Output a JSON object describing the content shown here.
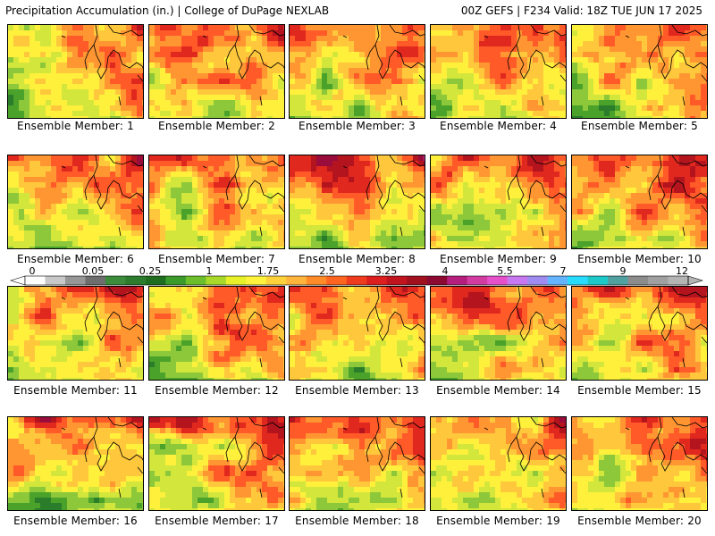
{
  "header": {
    "left_title": "Precipitation Accumulation (in.) | College of DuPage NEXLAB",
    "right_title": "00Z GEFS | F234 Valid: 18Z TUE JUN 17 2025"
  },
  "panels": [
    {
      "label": "Ensemble Member: 1"
    },
    {
      "label": "Ensemble Member: 2"
    },
    {
      "label": "Ensemble Member: 3"
    },
    {
      "label": "Ensemble Member: 4"
    },
    {
      "label": "Ensemble Member: 5"
    },
    {
      "label": "Ensemble Member: 6"
    },
    {
      "label": "Ensemble Member: 7"
    },
    {
      "label": "Ensemble Member: 8"
    },
    {
      "label": "Ensemble Member: 9"
    },
    {
      "label": "Ensemble Member: 10"
    },
    {
      "label": "Ensemble Member: 11"
    },
    {
      "label": "Ensemble Member: 12"
    },
    {
      "label": "Ensemble Member: 13"
    },
    {
      "label": "Ensemble Member: 14"
    },
    {
      "label": "Ensemble Member: 15"
    },
    {
      "label": "Ensemble Member: 16"
    },
    {
      "label": "Ensemble Member: 17"
    },
    {
      "label": "Ensemble Member: 18"
    },
    {
      "label": "Ensemble Member: 19"
    },
    {
      "label": "Ensemble Member: 20"
    }
  ],
  "scale": {
    "labels": [
      "0",
      "0.05",
      "0.25",
      "1",
      "1.75",
      "2.5",
      "3.25",
      "4",
      "5.5",
      "7",
      "9",
      "12"
    ],
    "colors": [
      "#ffffff",
      "#c8c8c8",
      "#969696",
      "#6e6e6e",
      "#3c8c3c",
      "#2e7d2e",
      "#1f6e1f",
      "#3a9b2a",
      "#6cbf2a",
      "#a8d82a",
      "#e8f02a",
      "#fff23c",
      "#ffd23c",
      "#ffb43c",
      "#ff8c28",
      "#ff6420",
      "#f03c1e",
      "#dc1e1e",
      "#c0141e",
      "#a0101e",
      "#8c0a32",
      "#b41e7c",
      "#d23ca0",
      "#e650c8",
      "#c878f0",
      "#a08cf0",
      "#64b4ff",
      "#28dcff",
      "#1ec8c8",
      "#50a0a0",
      "#8c8c8c",
      "#a0a0a0",
      "#b4b4b4"
    ],
    "palette_map": [
      "#2a7d2a",
      "#4aa22a",
      "#8cc83a",
      "#d2e63c",
      "#fff03c",
      "#ffc83c",
      "#ff9632",
      "#ff5a28",
      "#e0281e",
      "#b4141e",
      "#9a0c3c",
      "#c83ca0",
      "#e664dc",
      "#6ecbff",
      "#8c8c8c"
    ]
  }
}
